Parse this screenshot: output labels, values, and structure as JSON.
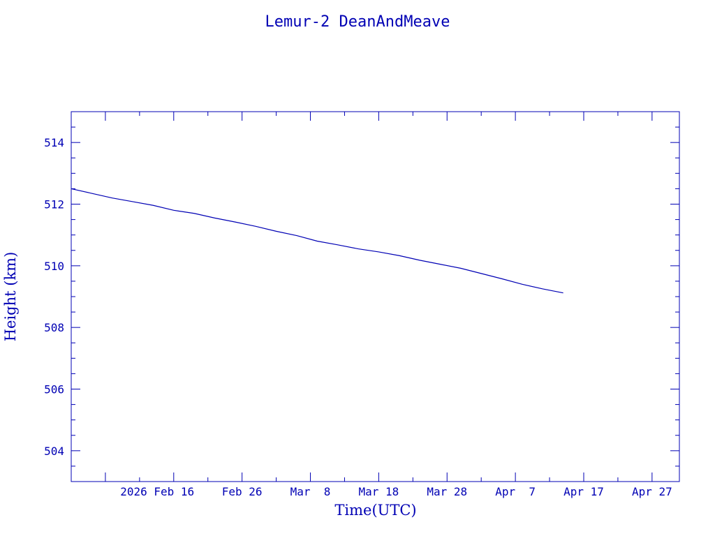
{
  "chart_data": {
    "type": "line",
    "title": "Lemur-2 DeanAndMeave",
    "xlabel": "Time(UTC)",
    "ylabel": "Height (km)",
    "color": "#0000b4",
    "x_range": [
      "2026-02-01",
      "2026-05-01"
    ],
    "ylim": [
      503,
      515
    ],
    "x_tick_labels": [
      "2026 Feb 16",
      "Feb 26",
      "Mar  8",
      "Mar 18",
      "Mar 28",
      "Apr  7",
      "Apr 17",
      "Apr 27"
    ],
    "x_tick_dates": [
      "2026-02-16",
      "2026-02-26",
      "2026-03-08",
      "2026-03-18",
      "2026-03-28",
      "2026-04-07",
      "2026-04-17",
      "2026-04-27"
    ],
    "y_ticks": [
      504,
      506,
      508,
      510,
      512,
      514
    ],
    "grid": false,
    "series": [
      {
        "x": [
          "2026-02-01",
          "2026-02-04",
          "2026-02-07",
          "2026-02-10",
          "2026-02-13",
          "2026-02-16",
          "2026-02-19",
          "2026-02-22",
          "2026-02-25",
          "2026-02-28",
          "2026-03-03",
          "2026-03-06",
          "2026-03-09",
          "2026-03-12",
          "2026-03-15",
          "2026-03-18",
          "2026-03-21",
          "2026-03-24",
          "2026-03-27",
          "2026-03-30",
          "2026-04-02",
          "2026-04-05",
          "2026-04-08",
          "2026-04-11",
          "2026-04-14"
        ],
        "y": [
          512.5,
          512.35,
          512.2,
          512.08,
          511.96,
          511.8,
          511.7,
          511.55,
          511.42,
          511.28,
          511.12,
          510.98,
          510.8,
          510.68,
          510.55,
          510.45,
          510.33,
          510.18,
          510.05,
          509.92,
          509.75,
          509.58,
          509.4,
          509.25,
          509.12
        ]
      }
    ]
  }
}
